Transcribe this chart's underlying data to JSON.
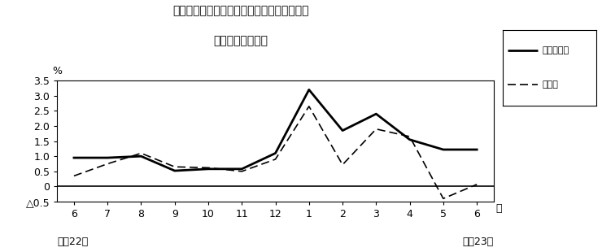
{
  "title_line1": "第３図　常用雇用指数　対前年同月比の推移",
  "title_line2": "（規模５人以上）",
  "xlabel_months": [
    "6",
    "7",
    "8",
    "9",
    "10",
    "11",
    "12",
    "1",
    "2",
    "3",
    "4",
    "5",
    "6"
  ],
  "x_values": [
    0,
    1,
    2,
    3,
    4,
    5,
    6,
    7,
    8,
    9,
    10,
    11,
    12
  ],
  "solid_values": [
    0.95,
    0.95,
    1.0,
    0.52,
    0.58,
    0.58,
    1.1,
    3.2,
    1.85,
    2.4,
    1.55,
    1.22,
    1.22
  ],
  "dashed_values": [
    0.35,
    0.75,
    1.1,
    0.65,
    0.62,
    0.5,
    0.9,
    2.65,
    0.72,
    1.9,
    1.65,
    -0.4,
    0.07
  ],
  "ylim_min": -0.5,
  "ylim_max": 3.5,
  "yticks": [
    -0.5,
    0.0,
    0.5,
    1.0,
    1.5,
    2.0,
    2.5,
    3.0,
    3.5
  ],
  "ytick_labels": [
    "△0.5",
    "0",
    "0.5",
    "1.0",
    "1.5",
    "2.0",
    "2.5",
    "3.0",
    "3.5"
  ],
  "ylabel_percent": "%",
  "legend_solid": "調査産業計",
  "legend_dashed": "製造業",
  "footer_left": "平成22年",
  "footer_right": "平成23年",
  "month_label": "月",
  "background_color": "#ffffff",
  "line_color": "#000000"
}
